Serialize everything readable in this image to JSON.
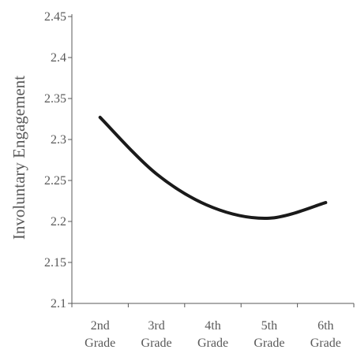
{
  "chart_data": {
    "type": "line",
    "categories": [
      "2nd Grade",
      "3rd Grade",
      "4th Grade",
      "5th Grade",
      "6th Grade"
    ],
    "category_lines": [
      [
        "2nd",
        "Grade"
      ],
      [
        "3rd",
        "Grade"
      ],
      [
        "4th",
        "Grade"
      ],
      [
        "5th",
        "Grade"
      ],
      [
        "6th",
        "Grade"
      ]
    ],
    "series": [
      {
        "values": [
          2.327,
          2.258,
          2.217,
          2.204,
          2.223
        ],
        "color": "#1a1a1a"
      }
    ],
    "ylabel": "Involuntary Engagement",
    "xlabel": "",
    "ylim": [
      2.1,
      2.45
    ],
    "yticks": [
      2.1,
      2.15,
      2.2,
      2.25,
      2.3,
      2.35,
      2.4,
      2.45
    ],
    "ytick_labels": [
      "2.1",
      "2.15",
      "2.2",
      "2.25",
      "2.3",
      "2.35",
      "2.4",
      "2.45"
    ],
    "grid": false,
    "smooth": true
  }
}
